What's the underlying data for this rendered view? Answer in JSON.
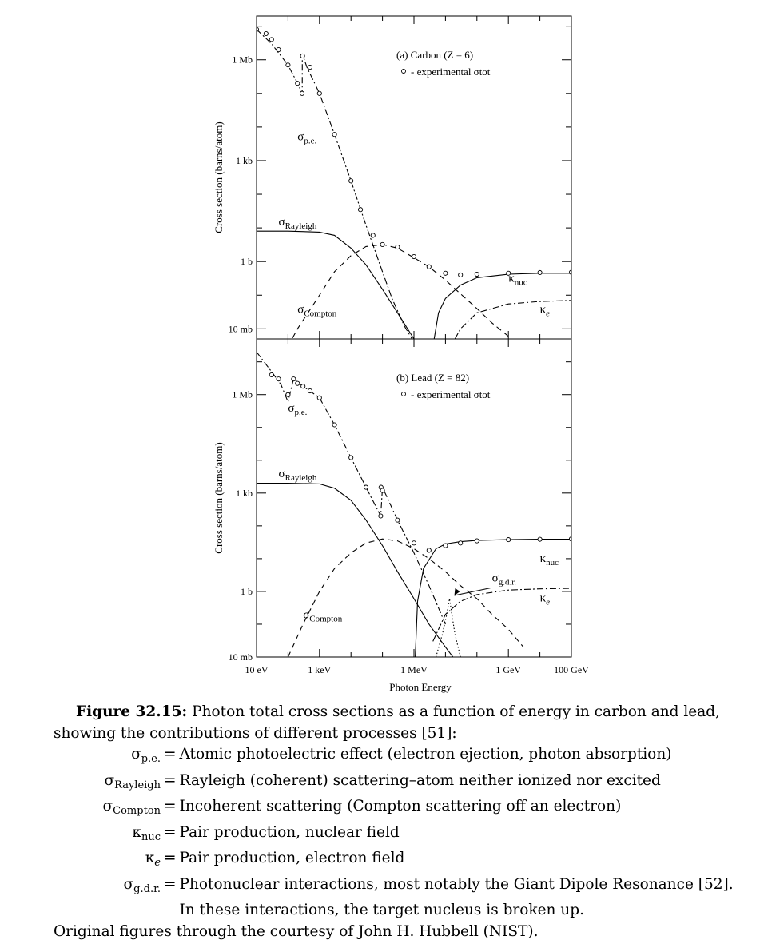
{
  "chart_data": [
    {
      "type": "line",
      "panel_label": "(a) Carbon (Z = 6)",
      "legend": "- experimental σtot",
      "ylabel": "Cross section  (barns/atom)",
      "xlabel": "",
      "x_unit": "eV",
      "xscale": "log",
      "yscale": "log",
      "xlim": [
        10,
        100000000000.0
      ],
      "ylim": [
        0.005,
        20000000
      ],
      "y_ticks": [
        {
          "value": 0.01,
          "label": "10 mb"
        },
        {
          "value": 1,
          "label": "1 b"
        },
        {
          "value": 1000,
          "label": "1 kb"
        },
        {
          "value": 1000000,
          "label": "1 Mb"
        }
      ],
      "series": [
        {
          "name": "σp.e.",
          "style": "dash-dot",
          "x": [
            10,
            30,
            100,
            200,
            283,
            284,
            400,
            1000,
            3000,
            10000,
            30000,
            100000,
            200000,
            500000,
            1000000
          ],
          "y": [
            8000000,
            3000000,
            700000,
            200000,
            100000,
            1500000,
            600000,
            100000,
            6000,
            250,
            12,
            0.5,
            0.08,
            0.012,
            0.004
          ]
        },
        {
          "name": "σRayleigh",
          "style": "solid",
          "x": [
            10,
            100,
            1000,
            3000,
            10000,
            30000,
            100000,
            300000,
            1000000,
            3000000
          ],
          "y": [
            8,
            8,
            7.5,
            6,
            2.5,
            0.8,
            0.15,
            0.03,
            0.005,
            0.001
          ]
        },
        {
          "name": "σCompton",
          "style": "dashed",
          "x": [
            100,
            200,
            1000,
            3000,
            10000,
            30000,
            100000,
            300000,
            1000000,
            3000000,
            10000000,
            30000000,
            100000000,
            300000000,
            1000000000
          ],
          "y": [
            0.003,
            0.01,
            0.1,
            0.5,
            1.5,
            2.8,
            3.2,
            2.5,
            1.3,
            0.7,
            0.28,
            0.11,
            0.04,
            0.015,
            0.006
          ]
        },
        {
          "name": "κnuc",
          "style": "solid",
          "x": [
            4000000,
            6000000,
            10000000,
            30000000,
            100000000,
            1000000000,
            10000000000,
            100000000000
          ],
          "y": [
            0.003,
            0.03,
            0.08,
            0.2,
            0.33,
            0.42,
            0.45,
            0.45
          ]
        },
        {
          "name": "κe",
          "style": "dash-dot",
          "x": [
            20000000,
            30000000,
            100000000,
            1000000000,
            10000000000,
            100000000000
          ],
          "y": [
            0.005,
            0.01,
            0.03,
            0.055,
            0.065,
            0.07
          ]
        },
        {
          "name": "experimental σtot",
          "style": "markers",
          "x": [
            10,
            20,
            30,
            50,
            100,
            200,
            280,
            290,
            500,
            1000,
            3000,
            10000,
            20000,
            50000,
            100000,
            300000,
            1000000,
            3000000,
            10000000,
            30000000,
            100000000,
            1000000000,
            10000000000,
            100000000000
          ],
          "y": [
            8000000,
            6000000,
            4000000,
            2000000,
            700000,
            200000,
            100000,
            1300000,
            600000,
            100000,
            6000,
            250,
            35,
            6,
            3.2,
            2.7,
            1.4,
            0.7,
            0.45,
            0.4,
            0.42,
            0.45,
            0.47,
            0.48
          ]
        }
      ]
    },
    {
      "type": "line",
      "panel_label": "(b) Lead (Z = 82)",
      "legend": "- experimental σtot",
      "ylabel": "Cross section  (barns/atom)",
      "xlabel": "Photon Energy",
      "x_unit": "eV",
      "xscale": "log",
      "yscale": "log",
      "xlim": [
        10,
        100000000000.0
      ],
      "ylim": [
        0.01,
        50000000
      ],
      "x_ticks": [
        {
          "value": 10,
          "label": "10 eV"
        },
        {
          "value": 1000,
          "label": "1 keV"
        },
        {
          "value": 1000000,
          "label": "1 MeV"
        },
        {
          "value": 1000000000,
          "label": "1 GeV"
        },
        {
          "value": 100000000000,
          "label": "100 GeV"
        }
      ],
      "y_ticks": [
        {
          "value": 0.01,
          "label": "10 mb"
        },
        {
          "value": 1,
          "label": "1 b"
        },
        {
          "value": 1000,
          "label": "1 kb"
        },
        {
          "value": 1000000,
          "label": "1 Mb"
        }
      ],
      "series": [
        {
          "name": "σp.e.",
          "style": "dash-dot",
          "x": [
            10,
            30,
            60,
            100,
            150,
            300,
            1000,
            3000,
            10000,
            30000,
            88000,
            100000,
            300000,
            1000000,
            3000000,
            10000000
          ],
          "y": [
            20000000,
            5000000,
            2000000,
            600000,
            3000000,
            1800000,
            800000,
            120000,
            12000,
            1500,
            200,
            1500,
            150,
            15,
            1.5,
            0.1
          ]
        },
        {
          "name": "σRayleigh",
          "style": "solid",
          "x": [
            10,
            100,
            1000,
            3000,
            10000,
            30000,
            100000,
            300000,
            1000000,
            3000000,
            10000000,
            30000000
          ],
          "y": [
            2000,
            2000,
            1900,
            1400,
            600,
            150,
            25,
            4,
            0.6,
            0.1,
            0.02,
            0.005
          ]
        },
        {
          "name": "σCompton",
          "style": "dashed",
          "x": [
            100,
            300,
            1000,
            3000,
            10000,
            30000,
            100000,
            300000,
            1000000,
            3000000,
            10000000,
            30000000,
            100000000,
            300000000,
            1000000000,
            3000000000
          ],
          "y": [
            0.01,
            0.1,
            1,
            5,
            15,
            30,
            40,
            35,
            20,
            10,
            4,
            1.5,
            0.6,
            0.2,
            0.07,
            0.02
          ]
        },
        {
          "name": "κnuc",
          "style": "solid",
          "x": [
            1100000,
            1300000,
            2000000,
            5000000,
            10000000,
            30000000,
            100000000,
            1000000000,
            10000000000,
            100000000000
          ],
          "y": [
            0.01,
            0.5,
            5,
            20,
            28,
            33,
            36,
            38,
            39,
            39
          ]
        },
        {
          "name": "κe",
          "style": "dash-dot",
          "x": [
            4000000,
            10000000,
            30000000,
            100000000,
            1000000000,
            10000000000,
            100000000000
          ],
          "y": [
            0.03,
            0.2,
            0.5,
            0.8,
            1.1,
            1.2,
            1.25
          ]
        },
        {
          "name": "σg.d.r.",
          "style": "dotted",
          "x": [
            5000000,
            8000000,
            11000000,
            13500000,
            16000000,
            20000000,
            30000000,
            50000000
          ],
          "y": [
            0.01,
            0.05,
            0.2,
            0.6,
            0.2,
            0.05,
            0.01,
            0.002
          ]
        },
        {
          "name": "experimental σtot",
          "style": "markers",
          "x": [
            30,
            50,
            100,
            150,
            200,
            300,
            500,
            1000,
            3000,
            10000,
            30000,
            88000,
            90000,
            100000,
            300000,
            1000000,
            3000000,
            10000000,
            30000000,
            100000000,
            1000000000,
            10000000000,
            100000000000
          ],
          "y": [
            4000000,
            3000000,
            1000000,
            3000000,
            2200000,
            1800000,
            1300000,
            800000,
            120000,
            12000,
            1500,
            200,
            1500,
            1200,
            150,
            30,
            18,
            25,
            30,
            35,
            38,
            39,
            40
          ]
        }
      ]
    }
  ],
  "annotations": {
    "a": [
      {
        "text": "σp.e.",
        "x": 200,
        "y": 4000
      },
      {
        "text": "σRayleigh",
        "x": 50,
        "y": 12
      },
      {
        "text": "σCompton",
        "x": 200,
        "y": 0.03
      },
      {
        "text": "κnuc",
        "x": 1000000000,
        "y": 0.25
      },
      {
        "text": "κe",
        "x": 10000000000,
        "y": 0.03
      }
    ],
    "b": [
      {
        "text": "σp.e.",
        "x": 100,
        "y": 300000
      },
      {
        "text": "σRayleigh",
        "x": 50,
        "y": 3000
      },
      {
        "text": "σCompton",
        "x": 300,
        "y": 0.15
      },
      {
        "text": "κnuc",
        "x": 10000000000,
        "y": 8
      },
      {
        "text": "κe",
        "x": 10000000000,
        "y": 0.5
      },
      {
        "text": "σg.d.r.",
        "x": 300000000,
        "y": 2
      }
    ]
  },
  "caption": {
    "figure_label": "Figure 32.15:",
    "intro": " Photon total cross sections as a function of energy in carbon and lead, showing the contributions of different processes [51]:",
    "entries": [
      {
        "symbol_main": "σ",
        "symbol_sub": "p.e.",
        "eq": "=",
        "text": "Atomic photoelectric effect (electron ejection, photon absorption)"
      },
      {
        "symbol_main": "σ",
        "symbol_sub": "Rayleigh",
        "eq": "=",
        "text": "Rayleigh (coherent) scattering–atom neither ionized nor excited"
      },
      {
        "symbol_main": "σ",
        "symbol_sub": "Compton",
        "eq": "=",
        "text": "Incoherent scattering (Compton scattering off an electron)"
      },
      {
        "symbol_main": "κ",
        "symbol_sub": "nuc",
        "eq": "=",
        "text": "Pair production, nuclear field"
      },
      {
        "symbol_main": "κ",
        "symbol_sub": "e",
        "eq": "=",
        "text": "Pair production, electron field"
      },
      {
        "symbol_main": "σ",
        "symbol_sub": "g.d.r.",
        "eq": "=",
        "text": "Photonuclear interactions, most notably the Giant Dipole Resonance [52]."
      },
      {
        "symbol_main": "",
        "symbol_sub": "",
        "eq": "",
        "text": "In these interactions, the target nucleus is broken up."
      }
    ],
    "credit": "Original figures through the courtesy of John H. Hubbell (NIST)."
  }
}
